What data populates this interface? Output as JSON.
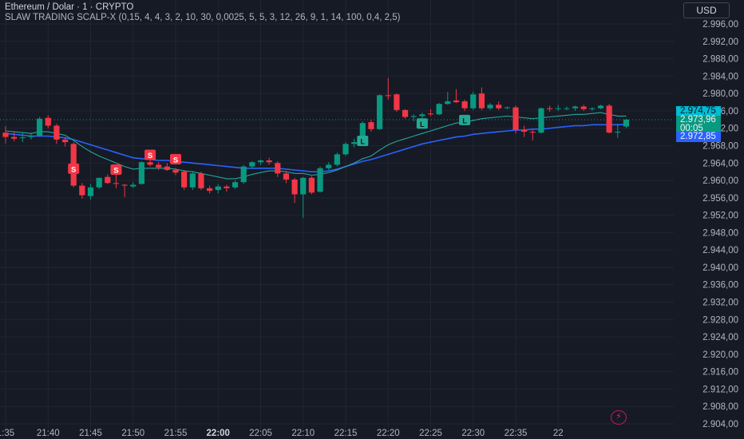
{
  "header": {
    "title": "Ethereum / Dolar · 1 · CRYPTO",
    "indicator": "SLAW TRADING SCALP-X (0,15, 4, 4, 3, 2, 10, 30, 0,0025, 5, 5, 3, 12, 26, 9, 1, 14, 100, 0,4, 2,5)",
    "currency": "USD"
  },
  "price_labels": {
    "cyan": "2.974,75",
    "green_price": "2.973,96",
    "green_countdown": "00:05",
    "blue": "2.972,85"
  },
  "colors": {
    "background": "#161a25",
    "up": "#089981",
    "down": "#f23645",
    "ema_fast": "#26a69a",
    "ema_slow": "#2962ff",
    "signal_short": "#f23645",
    "signal_long": "#22ab94"
  },
  "icons": {
    "flash": "lightning-icon"
  },
  "chart_data": {
    "type": "candlestick",
    "ylim": [
      2902,
      3000
    ],
    "y_ticks": [
      "2.996,00",
      "2.992,00",
      "2.988,00",
      "2.984,00",
      "2.980,00",
      "2.976,00",
      "2.972,00",
      "2.968,00",
      "2.964,00",
      "2.960,00",
      "2.956,00",
      "2.952,00",
      "2.948,00",
      "2.944,00",
      "2.940,00",
      "2.936,00",
      "2.932,00",
      "2.928,00",
      "2.924,00",
      "2.920,00",
      "2.916,00",
      "2.912,00",
      "2.908,00",
      "2.904,00"
    ],
    "x_ticks": [
      {
        "label": "1:35",
        "minute": -3.0,
        "bold": false
      },
      {
        "label": "21:40",
        "minute": 2.0,
        "bold": false
      },
      {
        "label": "21:45",
        "minute": 7.0,
        "bold": false
      },
      {
        "label": "21:50",
        "minute": 12.0,
        "bold": false
      },
      {
        "label": "21:55",
        "minute": 17.0,
        "bold": false
      },
      {
        "label": "22:00",
        "minute": 22.0,
        "bold": true
      },
      {
        "label": "22:05",
        "minute": 27.0,
        "bold": false
      },
      {
        "label": "22:10",
        "minute": 32.0,
        "bold": false
      },
      {
        "label": "22:15",
        "minute": 37.0,
        "bold": false
      },
      {
        "label": "22:20",
        "minute": 42.0,
        "bold": false
      },
      {
        "label": "22:25",
        "minute": 47.0,
        "bold": false
      },
      {
        "label": "22:30",
        "minute": 52.0,
        "bold": false
      },
      {
        "label": "22:35",
        "minute": 57.0,
        "bold": false
      },
      {
        "label": "22",
        "minute": 62.0,
        "bold": false
      }
    ],
    "candles": [
      {
        "o": 2971.0,
        "h": 2972.5,
        "l": 2968.5,
        "c": 2970.0
      },
      {
        "o": 2970.0,
        "h": 2971.2,
        "l": 2969.0,
        "c": 2969.6
      },
      {
        "o": 2969.8,
        "h": 2971.0,
        "l": 2968.8,
        "c": 2969.9
      },
      {
        "o": 2970.0,
        "h": 2971.0,
        "l": 2969.4,
        "c": 2970.3
      },
      {
        "o": 2970.3,
        "h": 2974.6,
        "l": 2970.0,
        "c": 2974.2
      },
      {
        "o": 2974.4,
        "h": 2975.0,
        "l": 2972.0,
        "c": 2972.6
      },
      {
        "o": 2972.6,
        "h": 2973.0,
        "l": 2968.4,
        "c": 2969.4
      },
      {
        "o": 2969.4,
        "h": 2970.0,
        "l": 2967.8,
        "c": 2968.8
      },
      {
        "o": 2968.4,
        "h": 2968.8,
        "l": 2958.4,
        "c": 2958.8
      },
      {
        "o": 2958.8,
        "h": 2959.4,
        "l": 2955.8,
        "c": 2956.6
      },
      {
        "o": 2956.4,
        "h": 2959.2,
        "l": 2955.6,
        "c": 2958.4
      },
      {
        "o": 2958.4,
        "h": 2960.6,
        "l": 2958.0,
        "c": 2960.6
      },
      {
        "o": 2960.8,
        "h": 2961.4,
        "l": 2959.2,
        "c": 2959.4
      },
      {
        "o": 2959.4,
        "h": 2961.6,
        "l": 2958.2,
        "c": 2959.2
      },
      {
        "o": 2959.0,
        "h": 2959.2,
        "l": 2956.2,
        "c": 2958.8
      },
      {
        "o": 2958.6,
        "h": 2959.6,
        "l": 2958.2,
        "c": 2959.0
      },
      {
        "o": 2959.2,
        "h": 2964.4,
        "l": 2959.0,
        "c": 2964.2
      },
      {
        "o": 2964.2,
        "h": 2964.8,
        "l": 2963.2,
        "c": 2963.6
      },
      {
        "o": 2963.6,
        "h": 2964.2,
        "l": 2962.4,
        "c": 2963.0
      },
      {
        "o": 2963.2,
        "h": 2964.0,
        "l": 2962.2,
        "c": 2962.4
      },
      {
        "o": 2962.4,
        "h": 2962.8,
        "l": 2961.2,
        "c": 2961.8
      },
      {
        "o": 2962.0,
        "h": 2962.4,
        "l": 2957.8,
        "c": 2958.4
      },
      {
        "o": 2958.4,
        "h": 2962.2,
        "l": 2957.8,
        "c": 2961.6
      },
      {
        "o": 2961.6,
        "h": 2962.0,
        "l": 2957.8,
        "c": 2958.2
      },
      {
        "o": 2958.2,
        "h": 2958.8,
        "l": 2957.0,
        "c": 2957.6
      },
      {
        "o": 2957.8,
        "h": 2959.2,
        "l": 2957.0,
        "c": 2958.6
      },
      {
        "o": 2958.6,
        "h": 2959.0,
        "l": 2957.4,
        "c": 2958.2
      },
      {
        "o": 2958.4,
        "h": 2960.0,
        "l": 2958.0,
        "c": 2959.6
      },
      {
        "o": 2959.6,
        "h": 2963.6,
        "l": 2959.2,
        "c": 2963.2
      },
      {
        "o": 2963.2,
        "h": 2964.4,
        "l": 2962.8,
        "c": 2964.2
      },
      {
        "o": 2964.2,
        "h": 2964.8,
        "l": 2963.6,
        "c": 2964.6
      },
      {
        "o": 2964.6,
        "h": 2965.2,
        "l": 2963.6,
        "c": 2964.2
      },
      {
        "o": 2964.0,
        "h": 2964.4,
        "l": 2960.8,
        "c": 2961.6
      },
      {
        "o": 2961.6,
        "h": 2962.2,
        "l": 2959.4,
        "c": 2960.2
      },
      {
        "o": 2960.2,
        "h": 2960.6,
        "l": 2954.8,
        "c": 2956.8
      },
      {
        "o": 2956.8,
        "h": 2960.8,
        "l": 2951.4,
        "c": 2960.6
      },
      {
        "o": 2960.6,
        "h": 2961.0,
        "l": 2956.8,
        "c": 2957.2
      },
      {
        "o": 2957.4,
        "h": 2963.2,
        "l": 2957.2,
        "c": 2962.8
      },
      {
        "o": 2962.8,
        "h": 2964.2,
        "l": 2962.4,
        "c": 2963.6
      },
      {
        "o": 2963.6,
        "h": 2966.4,
        "l": 2963.2,
        "c": 2966.0
      },
      {
        "o": 2966.0,
        "h": 2968.8,
        "l": 2965.6,
        "c": 2968.4
      },
      {
        "o": 2968.4,
        "h": 2969.6,
        "l": 2967.6,
        "c": 2968.8
      },
      {
        "o": 2968.8,
        "h": 2973.6,
        "l": 2968.4,
        "c": 2973.2
      },
      {
        "o": 2973.4,
        "h": 2974.0,
        "l": 2971.2,
        "c": 2971.8
      },
      {
        "o": 2971.8,
        "h": 2979.8,
        "l": 2971.6,
        "c": 2979.6
      },
      {
        "o": 2979.6,
        "h": 2983.6,
        "l": 2978.6,
        "c": 2979.4
      },
      {
        "o": 2979.8,
        "h": 2980.0,
        "l": 2975.8,
        "c": 2976.2
      },
      {
        "o": 2976.2,
        "h": 2976.4,
        "l": 2974.2,
        "c": 2974.6
      },
      {
        "o": 2974.6,
        "h": 2975.2,
        "l": 2973.6,
        "c": 2974.8
      },
      {
        "o": 2974.8,
        "h": 2975.6,
        "l": 2974.2,
        "c": 2975.2
      },
      {
        "o": 2975.4,
        "h": 2976.4,
        "l": 2974.8,
        "c": 2975.2
      },
      {
        "o": 2975.2,
        "h": 2977.8,
        "l": 2975.0,
        "c": 2977.6
      },
      {
        "o": 2977.6,
        "h": 2980.4,
        "l": 2977.4,
        "c": 2978.2
      },
      {
        "o": 2978.4,
        "h": 2981.0,
        "l": 2977.8,
        "c": 2978.0
      },
      {
        "o": 2978.2,
        "h": 2978.6,
        "l": 2976.0,
        "c": 2976.6
      },
      {
        "o": 2976.6,
        "h": 2980.4,
        "l": 2976.2,
        "c": 2979.8
      },
      {
        "o": 2980.0,
        "h": 2981.4,
        "l": 2976.2,
        "c": 2976.6
      },
      {
        "o": 2976.6,
        "h": 2977.8,
        "l": 2976.2,
        "c": 2977.4
      },
      {
        "o": 2977.4,
        "h": 2978.2,
        "l": 2976.2,
        "c": 2976.6
      },
      {
        "o": 2976.8,
        "h": 2977.0,
        "l": 2976.4,
        "c": 2976.8
      },
      {
        "o": 2976.8,
        "h": 2977.2,
        "l": 2970.8,
        "c": 2971.6
      },
      {
        "o": 2971.6,
        "h": 2972.6,
        "l": 2970.0,
        "c": 2971.2
      },
      {
        "o": 2971.2,
        "h": 2971.6,
        "l": 2969.2,
        "c": 2971.0
      },
      {
        "o": 2971.0,
        "h": 2976.8,
        "l": 2970.8,
        "c": 2976.6
      },
      {
        "o": 2976.6,
        "h": 2977.2,
        "l": 2975.8,
        "c": 2976.4
      },
      {
        "o": 2976.6,
        "h": 2977.4,
        "l": 2976.0,
        "c": 2976.6
      },
      {
        "o": 2976.6,
        "h": 2977.0,
        "l": 2976.2,
        "c": 2976.6
      },
      {
        "o": 2976.6,
        "h": 2977.2,
        "l": 2976.0,
        "c": 2977.0
      },
      {
        "o": 2977.0,
        "h": 2977.4,
        "l": 2976.0,
        "c": 2976.4
      },
      {
        "o": 2976.4,
        "h": 2976.8,
        "l": 2976.0,
        "c": 2976.6
      },
      {
        "o": 2976.6,
        "h": 2977.4,
        "l": 2976.4,
        "c": 2977.2
      },
      {
        "o": 2977.2,
        "h": 2977.6,
        "l": 2970.8,
        "c": 2971.0
      },
      {
        "o": 2971.0,
        "h": 2973.0,
        "l": 2969.8,
        "c": 2971.2
      },
      {
        "o": 2972.4,
        "h": 2974.2,
        "l": 2972.0,
        "c": 2974.0
      }
    ],
    "ema_fast": [
      2971.4,
      2971.2,
      2971.0,
      2970.8,
      2971.2,
      2971.2,
      2970.8,
      2970.4,
      2969.2,
      2967.8,
      2966.6,
      2965.6,
      2964.8,
      2964.0,
      2963.2,
      2962.6,
      2962.8,
      2962.8,
      2962.8,
      2962.8,
      2962.6,
      2962.2,
      2962.0,
      2961.6,
      2961.2,
      2960.8,
      2960.4,
      2960.4,
      2960.8,
      2961.4,
      2961.8,
      2962.2,
      2962.2,
      2962.0,
      2961.6,
      2961.6,
      2961.2,
      2961.4,
      2961.8,
      2962.4,
      2963.2,
      2964.0,
      2965.0,
      2965.6,
      2967.0,
      2968.2,
      2969.0,
      2969.6,
      2970.2,
      2970.8,
      2971.4,
      2972.0,
      2972.6,
      2973.2,
      2973.4,
      2973.8,
      2974.2,
      2974.4,
      2974.6,
      2974.8,
      2974.6,
      2974.4,
      2974.2,
      2974.4,
      2974.6,
      2974.8,
      2975.0,
      2975.2,
      2975.2,
      2975.4,
      2975.6,
      2975.2,
      2974.8,
      2974.8
    ],
    "ema_slow": [
      2970.8,
      2970.6,
      2970.4,
      2970.2,
      2970.2,
      2970.2,
      2970.0,
      2969.8,
      2969.4,
      2968.8,
      2968.2,
      2967.6,
      2967.0,
      2966.4,
      2965.8,
      2965.2,
      2965.0,
      2964.8,
      2964.6,
      2964.6,
      2964.4,
      2964.2,
      2964.0,
      2963.8,
      2963.6,
      2963.4,
      2963.2,
      2963.0,
      2962.8,
      2962.8,
      2962.8,
      2962.8,
      2962.8,
      2962.6,
      2962.4,
      2962.2,
      2962.0,
      2962.0,
      2962.2,
      2962.6,
      2963.2,
      2963.8,
      2964.4,
      2964.8,
      2965.4,
      2966.0,
      2966.6,
      2967.2,
      2967.8,
      2968.4,
      2968.8,
      2969.2,
      2969.6,
      2970.0,
      2970.2,
      2970.6,
      2970.8,
      2971.0,
      2971.2,
      2971.4,
      2971.6,
      2971.6,
      2971.8,
      2971.8,
      2972.0,
      2972.2,
      2972.4,
      2972.6,
      2972.6,
      2972.8,
      2972.8,
      2972.8,
      2972.8,
      2972.85
    ],
    "current_price": 2973.96,
    "signals": [
      {
        "type": "S",
        "index": 8,
        "price": 2962.6
      },
      {
        "type": "S",
        "index": 13,
        "price": 2962.4
      },
      {
        "type": "S",
        "index": 17,
        "price": 2965.8
      },
      {
        "type": "S",
        "index": 20,
        "price": 2964.8
      },
      {
        "type": "L",
        "index": 42,
        "price": 2969.0
      },
      {
        "type": "L",
        "index": 49,
        "price": 2973.0
      },
      {
        "type": "L",
        "index": 54,
        "price": 2973.8
      }
    ],
    "grid": true
  }
}
